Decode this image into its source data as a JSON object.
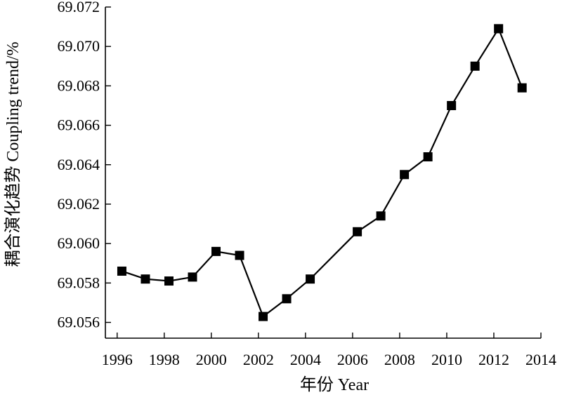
{
  "chart_data": {
    "type": "line",
    "xlabel": "年份 Year",
    "ylabel": "耦合演化趋势 Coupling trend/%",
    "xlim": [
      1995.5,
      2014
    ],
    "ylim": [
      69.0552,
      69.072
    ],
    "x_ticks": [
      1996,
      1998,
      2000,
      2002,
      2004,
      2006,
      2008,
      2010,
      2012,
      2014
    ],
    "y_ticks": [
      69.056,
      69.058,
      69.06,
      69.062,
      69.064,
      69.066,
      69.068,
      69.07,
      69.072
    ],
    "y_tick_labels": [
      "69.056",
      "69.058",
      "69.060",
      "69.062",
      "69.064",
      "69.066",
      "69.068",
      "69.070",
      "69.072"
    ],
    "grid": false,
    "marker": "square",
    "series": [
      {
        "x": [
          1996.2,
          1997.2,
          1998.2,
          1999.2,
          2000.2,
          2001.2,
          2002.2,
          2003.2,
          2004.2,
          2006.2,
          2007.2,
          2008.2,
          2009.2,
          2010.2,
          2011.2,
          2012.2,
          2013.2
        ],
        "values": [
          69.0586,
          69.0582,
          69.0581,
          69.0583,
          69.0596,
          69.0594,
          69.0563,
          69.0572,
          69.0582,
          69.0606,
          69.0614,
          69.0635,
          69.0644,
          69.067,
          69.069,
          69.0709,
          69.0679
        ]
      }
    ]
  }
}
